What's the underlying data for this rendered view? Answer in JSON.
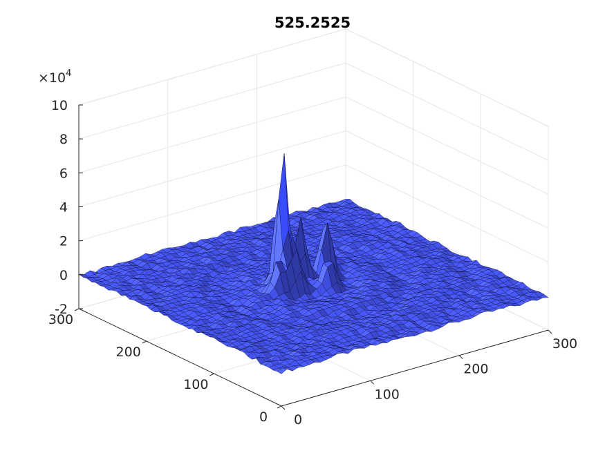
{
  "chart_data": {
    "type": "surface3d",
    "title": "525.2525",
    "xlabel": "",
    "ylabel": "",
    "zlabel": "",
    "x_ticks": [
      "0",
      "100",
      "200",
      "300"
    ],
    "y_ticks": [
      "0",
      "100",
      "200",
      "300"
    ],
    "z_ticks": [
      "-2",
      "0",
      "2",
      "4",
      "6",
      "8",
      "10"
    ],
    "z_multiplier": "×10",
    "z_exponent": "4",
    "xlim": [
      0,
      300
    ],
    "ylim": [
      0,
      300
    ],
    "zlim": [
      -20000,
      100000
    ],
    "grid": true,
    "surface_color": "#4b5cf0",
    "edge_color": "#000000",
    "peaks": [
      {
        "x": 130,
        "y": 170,
        "z": 82000
      },
      {
        "x": 130,
        "y": 150,
        "z": 26000
      },
      {
        "x": 150,
        "y": 170,
        "z": 38000
      },
      {
        "x": 175,
        "y": 165,
        "z": 36000
      },
      {
        "x": 115,
        "y": 155,
        "z": 22000
      },
      {
        "x": 160,
        "y": 140,
        "z": 18000
      }
    ]
  }
}
